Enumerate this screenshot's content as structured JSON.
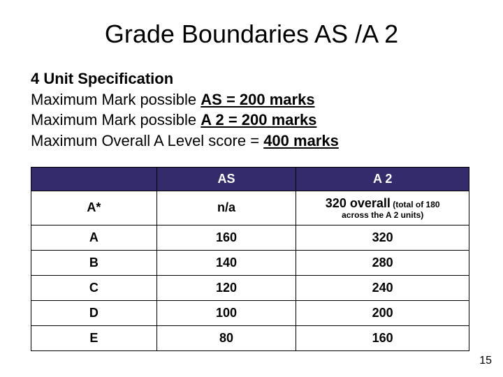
{
  "title": "Grade Boundaries AS /A 2",
  "spec": {
    "heading": "4 Unit Specification",
    "line1_prefix": "Maximum Mark possible ",
    "line1_underlined": "AS = 200 marks",
    "line2_prefix": "Maximum Mark possible ",
    "line2_underlined": "A 2 = 200 marks",
    "line3_prefix": "Maximum Overall A Level score = ",
    "line3_underlined": "400 marks"
  },
  "table": {
    "header_grade": "",
    "header_as": "AS",
    "header_a2": "A 2",
    "rows": [
      {
        "grade": "A*",
        "as": "n/a",
        "a2_main": "320 overall",
        "a2_sub1": " (total of 180",
        "a2_sub2": "across the A 2 units)"
      },
      {
        "grade": "A",
        "as": "160",
        "a2": "320"
      },
      {
        "grade": "B",
        "as": "140",
        "a2": "280"
      },
      {
        "grade": "C",
        "as": "120",
        "a2": "240"
      },
      {
        "grade": "D",
        "as": "100",
        "a2": "200"
      },
      {
        "grade": "E",
        "as": "80",
        "a2": "160"
      }
    ],
    "colors": {
      "header_bg": "#332b6b",
      "header_fg": "#ffffff",
      "cell_bg": "#ffffff",
      "border": "#000000"
    }
  },
  "pagenum": "15"
}
